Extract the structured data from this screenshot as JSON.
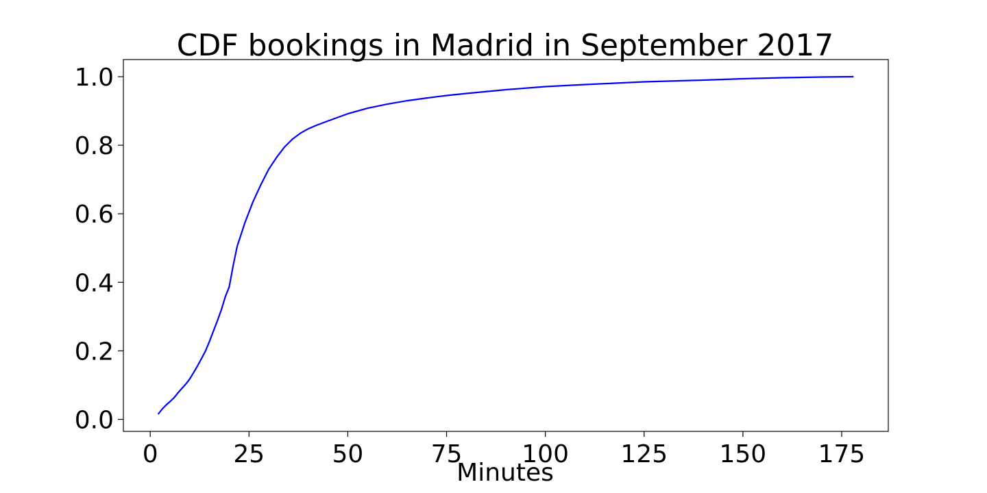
{
  "chart_data": {
    "type": "line",
    "title": "CDF bookings in Madrid in September 2017",
    "xlabel": "Minutes",
    "ylabel": "",
    "xlim": [
      -6.8,
      186.8
    ],
    "ylim": [
      -0.035,
      1.05
    ],
    "xticks": [
      0,
      25,
      50,
      75,
      100,
      125,
      150,
      175
    ],
    "xtick_labels": [
      "0",
      "25",
      "50",
      "75",
      "100",
      "125",
      "150",
      "175"
    ],
    "yticks": [
      0.0,
      0.2,
      0.4,
      0.6,
      0.8,
      1.0
    ],
    "ytick_labels": [
      "0.0",
      "0.2",
      "0.4",
      "0.6",
      "0.8",
      "1.0"
    ],
    "grid": false,
    "legend": "none",
    "series": [
      {
        "color": "#0000ff",
        "x": [
          2,
          3,
          4,
          5,
          6,
          7,
          8,
          9,
          10,
          11,
          12,
          13,
          14,
          15,
          16,
          17,
          18,
          19,
          20,
          21,
          22,
          24,
          26,
          28,
          30,
          32,
          34,
          36,
          38,
          40,
          42,
          45,
          50,
          55,
          60,
          65,
          70,
          75,
          80,
          90,
          100,
          110,
          125,
          140,
          150,
          160,
          170,
          178
        ],
        "y": [
          0.015,
          0.03,
          0.042,
          0.052,
          0.063,
          0.077,
          0.09,
          0.103,
          0.118,
          0.137,
          0.157,
          0.178,
          0.2,
          0.228,
          0.258,
          0.288,
          0.32,
          0.358,
          0.387,
          0.45,
          0.505,
          0.575,
          0.635,
          0.685,
          0.73,
          0.765,
          0.795,
          0.818,
          0.835,
          0.848,
          0.858,
          0.871,
          0.892,
          0.908,
          0.92,
          0.93,
          0.938,
          0.945,
          0.951,
          0.962,
          0.971,
          0.977,
          0.985,
          0.99,
          0.994,
          0.997,
          0.999,
          1.0
        ]
      }
    ]
  }
}
